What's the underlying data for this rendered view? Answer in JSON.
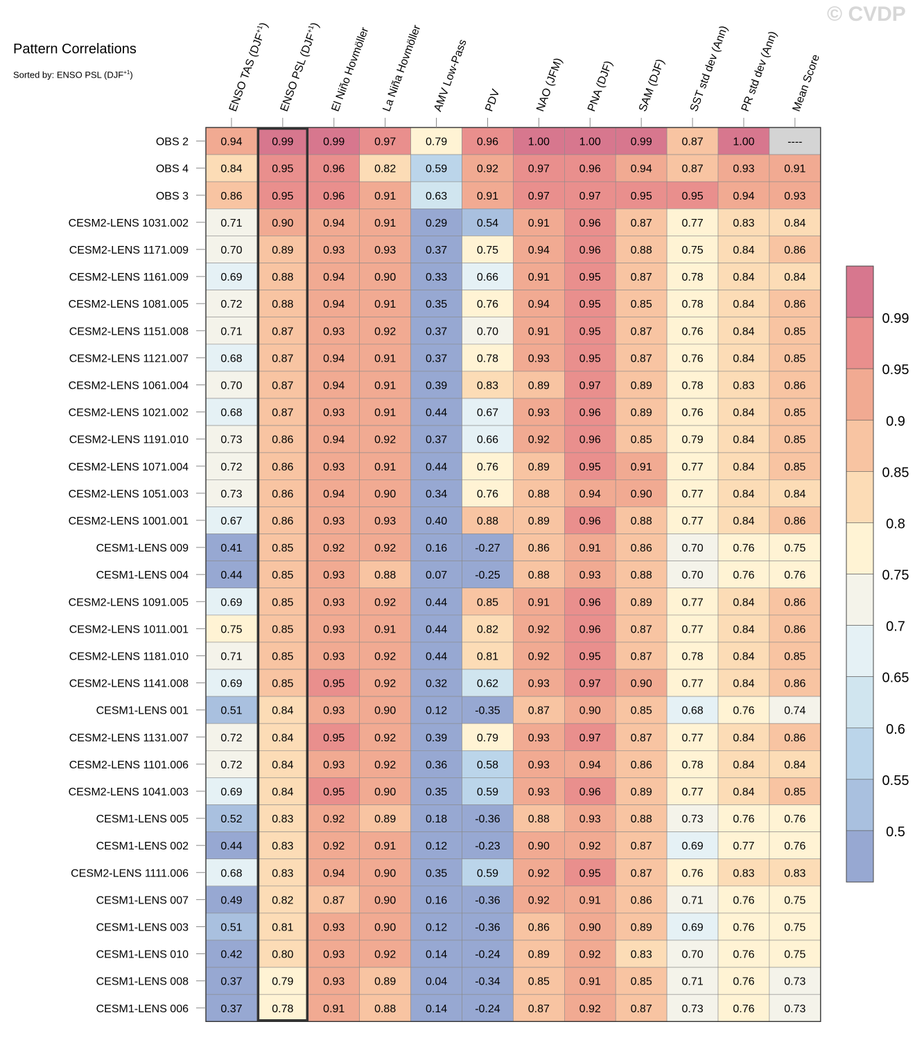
{
  "watermark": "© CVDP",
  "title": "Pattern Correlations",
  "subtitle_prefix": "Sorted by: ENSO PSL (DJF",
  "subtitle_sup": "+1",
  "subtitle_suffix": ")",
  "chart_data": {
    "type": "heatmap",
    "title": "Pattern Correlations",
    "columns": [
      {
        "label": "ENSO TAS (DJF",
        "sup": "+1",
        "suffix": ")"
      },
      {
        "label": "ENSO PSL (DJF",
        "sup": "+1",
        "suffix": ")"
      },
      {
        "label": "El Niño Hovmöller",
        "sup": "",
        "suffix": ""
      },
      {
        "label": "La Niña Hovmöller",
        "sup": "",
        "suffix": ""
      },
      {
        "label": "AMV Low-Pass",
        "sup": "",
        "suffix": ""
      },
      {
        "label": "PDV",
        "sup": "",
        "suffix": ""
      },
      {
        "label": "NAO (JFM)",
        "sup": "",
        "suffix": ""
      },
      {
        "label": "PNA (DJF)",
        "sup": "",
        "suffix": ""
      },
      {
        "label": "SAM (DJF)",
        "sup": "",
        "suffix": ""
      },
      {
        "label": "SST std dev (Ann)",
        "sup": "",
        "suffix": ""
      },
      {
        "label": "PR std dev (Ann)",
        "sup": "",
        "suffix": ""
      },
      {
        "label": "Mean Score",
        "sup": "",
        "suffix": ""
      }
    ],
    "highlighted_column": 1,
    "rows": [
      {
        "name": "OBS 2",
        "values": [
          "0.94",
          "0.99",
          "0.99",
          "0.97",
          "0.79",
          "0.96",
          "1.00",
          "1.00",
          "0.99",
          "0.87",
          "1.00",
          "----"
        ]
      },
      {
        "name": "OBS 4",
        "values": [
          "0.84",
          "0.95",
          "0.96",
          "0.82",
          "0.59",
          "0.92",
          "0.97",
          "0.96",
          "0.94",
          "0.87",
          "0.93",
          "0.91"
        ]
      },
      {
        "name": "OBS 3",
        "values": [
          "0.86",
          "0.95",
          "0.96",
          "0.91",
          "0.63",
          "0.91",
          "0.97",
          "0.97",
          "0.95",
          "0.95",
          "0.94",
          "0.93"
        ]
      },
      {
        "name": "CESM2-LENS 1031.002",
        "values": [
          "0.71",
          "0.90",
          "0.94",
          "0.91",
          "0.29",
          "0.54",
          "0.91",
          "0.96",
          "0.87",
          "0.77",
          "0.83",
          "0.84"
        ]
      },
      {
        "name": "CESM2-LENS 1171.009",
        "values": [
          "0.70",
          "0.89",
          "0.93",
          "0.93",
          "0.37",
          "0.75",
          "0.94",
          "0.96",
          "0.88",
          "0.75",
          "0.84",
          "0.86"
        ]
      },
      {
        "name": "CESM2-LENS 1161.009",
        "values": [
          "0.69",
          "0.88",
          "0.94",
          "0.90",
          "0.33",
          "0.66",
          "0.91",
          "0.95",
          "0.87",
          "0.78",
          "0.84",
          "0.84"
        ]
      },
      {
        "name": "CESM2-LENS 1081.005",
        "values": [
          "0.72",
          "0.88",
          "0.94",
          "0.91",
          "0.35",
          "0.76",
          "0.94",
          "0.95",
          "0.85",
          "0.78",
          "0.84",
          "0.86"
        ]
      },
      {
        "name": "CESM2-LENS 1151.008",
        "values": [
          "0.71",
          "0.87",
          "0.93",
          "0.92",
          "0.37",
          "0.70",
          "0.91",
          "0.95",
          "0.87",
          "0.76",
          "0.84",
          "0.85"
        ]
      },
      {
        "name": "CESM2-LENS 1121.007",
        "values": [
          "0.68",
          "0.87",
          "0.94",
          "0.91",
          "0.37",
          "0.78",
          "0.93",
          "0.95",
          "0.87",
          "0.76",
          "0.84",
          "0.85"
        ]
      },
      {
        "name": "CESM2-LENS 1061.004",
        "values": [
          "0.70",
          "0.87",
          "0.94",
          "0.91",
          "0.39",
          "0.83",
          "0.89",
          "0.97",
          "0.89",
          "0.78",
          "0.83",
          "0.86"
        ]
      },
      {
        "name": "CESM2-LENS 1021.002",
        "values": [
          "0.68",
          "0.87",
          "0.93",
          "0.91",
          "0.44",
          "0.67",
          "0.93",
          "0.96",
          "0.89",
          "0.76",
          "0.84",
          "0.85"
        ]
      },
      {
        "name": "CESM2-LENS 1191.010",
        "values": [
          "0.73",
          "0.86",
          "0.94",
          "0.92",
          "0.37",
          "0.66",
          "0.92",
          "0.96",
          "0.85",
          "0.79",
          "0.84",
          "0.85"
        ]
      },
      {
        "name": "CESM2-LENS 1071.004",
        "values": [
          "0.72",
          "0.86",
          "0.93",
          "0.91",
          "0.44",
          "0.76",
          "0.89",
          "0.95",
          "0.91",
          "0.77",
          "0.84",
          "0.85"
        ]
      },
      {
        "name": "CESM2-LENS 1051.003",
        "values": [
          "0.73",
          "0.86",
          "0.94",
          "0.90",
          "0.34",
          "0.76",
          "0.88",
          "0.94",
          "0.90",
          "0.77",
          "0.84",
          "0.84"
        ]
      },
      {
        "name": "CESM2-LENS 1001.001",
        "values": [
          "0.67",
          "0.86",
          "0.93",
          "0.93",
          "0.40",
          "0.88",
          "0.89",
          "0.96",
          "0.88",
          "0.77",
          "0.84",
          "0.86"
        ]
      },
      {
        "name": "CESM1-LENS 009",
        "values": [
          "0.41",
          "0.85",
          "0.92",
          "0.92",
          "0.16",
          "-0.27",
          "0.86",
          "0.91",
          "0.86",
          "0.70",
          "0.76",
          "0.75"
        ]
      },
      {
        "name": "CESM1-LENS 004",
        "values": [
          "0.44",
          "0.85",
          "0.93",
          "0.88",
          "0.07",
          "-0.25",
          "0.88",
          "0.93",
          "0.88",
          "0.70",
          "0.76",
          "0.76"
        ]
      },
      {
        "name": "CESM2-LENS 1091.005",
        "values": [
          "0.69",
          "0.85",
          "0.93",
          "0.92",
          "0.44",
          "0.85",
          "0.91",
          "0.96",
          "0.89",
          "0.77",
          "0.84",
          "0.86"
        ]
      },
      {
        "name": "CESM2-LENS 1011.001",
        "values": [
          "0.75",
          "0.85",
          "0.93",
          "0.91",
          "0.44",
          "0.82",
          "0.92",
          "0.96",
          "0.87",
          "0.77",
          "0.84",
          "0.86"
        ]
      },
      {
        "name": "CESM2-LENS 1181.010",
        "values": [
          "0.71",
          "0.85",
          "0.93",
          "0.92",
          "0.44",
          "0.81",
          "0.92",
          "0.95",
          "0.87",
          "0.78",
          "0.84",
          "0.85"
        ]
      },
      {
        "name": "CESM2-LENS 1141.008",
        "values": [
          "0.69",
          "0.85",
          "0.95",
          "0.92",
          "0.32",
          "0.62",
          "0.93",
          "0.97",
          "0.90",
          "0.77",
          "0.84",
          "0.86"
        ]
      },
      {
        "name": "CESM1-LENS 001",
        "values": [
          "0.51",
          "0.84",
          "0.93",
          "0.90",
          "0.12",
          "-0.35",
          "0.87",
          "0.90",
          "0.85",
          "0.68",
          "0.76",
          "0.74"
        ]
      },
      {
        "name": "CESM2-LENS 1131.007",
        "values": [
          "0.72",
          "0.84",
          "0.95",
          "0.92",
          "0.39",
          "0.79",
          "0.93",
          "0.97",
          "0.87",
          "0.77",
          "0.84",
          "0.86"
        ]
      },
      {
        "name": "CESM2-LENS 1101.006",
        "values": [
          "0.72",
          "0.84",
          "0.93",
          "0.92",
          "0.36",
          "0.58",
          "0.93",
          "0.94",
          "0.86",
          "0.78",
          "0.84",
          "0.84"
        ]
      },
      {
        "name": "CESM2-LENS 1041.003",
        "values": [
          "0.69",
          "0.84",
          "0.95",
          "0.90",
          "0.35",
          "0.59",
          "0.93",
          "0.96",
          "0.89",
          "0.77",
          "0.84",
          "0.85"
        ]
      },
      {
        "name": "CESM1-LENS 005",
        "values": [
          "0.52",
          "0.83",
          "0.92",
          "0.89",
          "0.18",
          "-0.36",
          "0.88",
          "0.93",
          "0.88",
          "0.73",
          "0.76",
          "0.76"
        ]
      },
      {
        "name": "CESM1-LENS 002",
        "values": [
          "0.44",
          "0.83",
          "0.92",
          "0.91",
          "0.12",
          "-0.23",
          "0.90",
          "0.92",
          "0.87",
          "0.69",
          "0.77",
          "0.76"
        ]
      },
      {
        "name": "CESM2-LENS 1111.006",
        "values": [
          "0.68",
          "0.83",
          "0.94",
          "0.90",
          "0.35",
          "0.59",
          "0.92",
          "0.95",
          "0.87",
          "0.76",
          "0.83",
          "0.83"
        ]
      },
      {
        "name": "CESM1-LENS 007",
        "values": [
          "0.49",
          "0.82",
          "0.87",
          "0.90",
          "0.16",
          "-0.36",
          "0.92",
          "0.91",
          "0.86",
          "0.71",
          "0.76",
          "0.75"
        ]
      },
      {
        "name": "CESM1-LENS 003",
        "values": [
          "0.51",
          "0.81",
          "0.93",
          "0.90",
          "0.12",
          "-0.36",
          "0.86",
          "0.90",
          "0.89",
          "0.69",
          "0.76",
          "0.75"
        ]
      },
      {
        "name": "CESM1-LENS 010",
        "values": [
          "0.42",
          "0.80",
          "0.93",
          "0.92",
          "0.14",
          "-0.24",
          "0.89",
          "0.92",
          "0.83",
          "0.70",
          "0.76",
          "0.75"
        ]
      },
      {
        "name": "CESM1-LENS 008",
        "values": [
          "0.37",
          "0.79",
          "0.93",
          "0.89",
          "0.04",
          "-0.34",
          "0.85",
          "0.91",
          "0.85",
          "0.71",
          "0.76",
          "0.73"
        ]
      },
      {
        "name": "CESM1-LENS 006",
        "values": [
          "0.37",
          "0.78",
          "0.91",
          "0.88",
          "0.14",
          "-0.24",
          "0.87",
          "0.92",
          "0.87",
          "0.73",
          "0.76",
          "0.73"
        ]
      }
    ],
    "colorbar": {
      "labels": [
        "0.99",
        "0.95",
        "0.9",
        "0.85",
        "0.8",
        "0.75",
        "0.7",
        "0.65",
        "0.6",
        "0.55",
        "0.5"
      ],
      "levels": [
        0.5,
        0.55,
        0.6,
        0.65,
        0.7,
        0.75,
        0.8,
        0.85,
        0.9,
        0.95,
        0.99
      ],
      "colors": [
        "#97a8d2",
        "#a9c0df",
        "#bbd5ea",
        "#d0e5ef",
        "#e5f1f5",
        "#f4f3ea",
        "#fff3d4",
        "#fcdcb6",
        "#f8c4a2",
        "#f1aa92",
        "#e98f8d",
        "#d7778e"
      ],
      "missing_color": "#d4d4d4"
    }
  }
}
